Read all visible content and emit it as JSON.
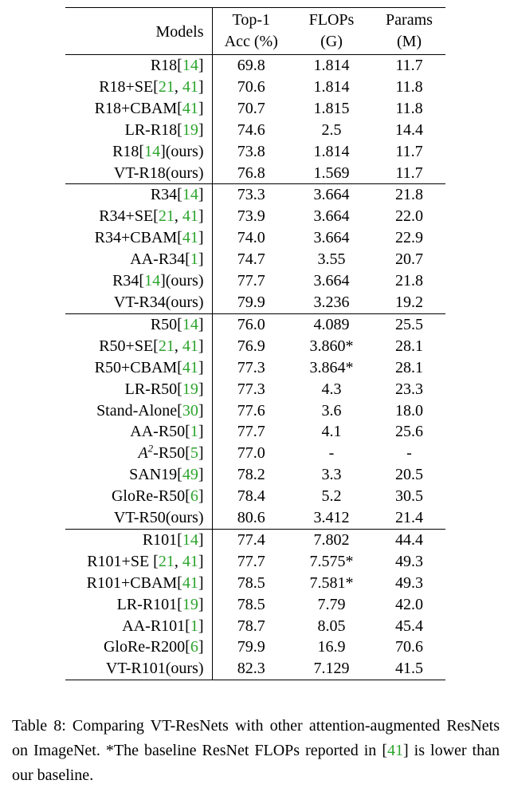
{
  "header": {
    "models": "Models",
    "top1_line1": "Top-1",
    "top1_line2": "Acc (%)",
    "flops_line1": "FLOPs",
    "flops_line2": "(G)",
    "params_line1": "Params",
    "params_line2": "(M)"
  },
  "groups": [
    {
      "rows": [
        {
          "base": "R18[",
          "cites": [
            "14"
          ],
          "tail": "]",
          "top1": "69.8",
          "flops": "1.814",
          "params": "11.7",
          "bold": []
        },
        {
          "base": "R18+SE[",
          "cites": [
            "21",
            "41"
          ],
          "tail": "]",
          "top1": "70.6",
          "flops": "1.814",
          "params": "11.8",
          "bold": []
        },
        {
          "base": "R18+CBAM[",
          "cites": [
            "41"
          ],
          "tail": "]",
          "top1": "70.7",
          "flops": "1.815",
          "params": "11.8",
          "bold": []
        },
        {
          "base": "LR-R18[",
          "cites": [
            "19"
          ],
          "tail": "]",
          "top1": "74.6",
          "flops": "2.5",
          "params": "14.4",
          "bold": []
        },
        {
          "base": "R18[",
          "cites": [
            "14"
          ],
          "tail": "](ours)",
          "top1": "73.8",
          "flops": "1.814",
          "params": "11.7",
          "bold": []
        },
        {
          "base": "VT-R18(ours)",
          "cites": [],
          "tail": "",
          "top1": "76.8",
          "flops": "1.569",
          "params": "11.7",
          "bold": [
            "top1",
            "flops",
            "params"
          ]
        }
      ]
    },
    {
      "rows": [
        {
          "base": "R34[",
          "cites": [
            "14"
          ],
          "tail": "]",
          "top1": "73.3",
          "flops": "3.664",
          "params": "21.8",
          "bold": []
        },
        {
          "base": "R34+SE[",
          "cites": [
            "21",
            "41"
          ],
          "tail": "]",
          "top1": "73.9",
          "flops": "3.664",
          "params": "22.0",
          "bold": []
        },
        {
          "base": "R34+CBAM[",
          "cites": [
            "41"
          ],
          "tail": "]",
          "top1": "74.0",
          "flops": "3.664",
          "params": "22.9",
          "bold": []
        },
        {
          "base": "AA-R34[",
          "cites": [
            "1"
          ],
          "tail": "]",
          "top1": "74.7",
          "flops": "3.55",
          "params": "20.7",
          "bold": []
        },
        {
          "base": "R34[",
          "cites": [
            "14"
          ],
          "tail": "](ours)",
          "top1": "77.7",
          "flops": "3.664",
          "params": "21.8",
          "bold": []
        },
        {
          "base": "VT-R34(ours)",
          "cites": [],
          "tail": "",
          "top1": "79.9",
          "flops": "3.236",
          "params": "19.2",
          "bold": [
            "top1",
            "flops",
            "params"
          ]
        }
      ]
    },
    {
      "rows": [
        {
          "base": "R50[",
          "cites": [
            "14"
          ],
          "tail": "]",
          "top1": "76.0",
          "flops": "4.089",
          "params": "25.5",
          "bold": []
        },
        {
          "base": "R50+SE[",
          "cites": [
            "21",
            "41"
          ],
          "tail": "]",
          "top1": "76.9",
          "flops": "3.860*",
          "params": "28.1",
          "bold": []
        },
        {
          "base": "R50+CBAM[",
          "cites": [
            "41"
          ],
          "tail": "]",
          "top1": "77.3",
          "flops": "3.864*",
          "params": "28.1",
          "bold": []
        },
        {
          "base": "LR-R50[",
          "cites": [
            "19"
          ],
          "tail": "]",
          "top1": "77.3",
          "flops": "4.3",
          "params": "23.3",
          "bold": []
        },
        {
          "base": "Stand-Alone[",
          "cites": [
            "30"
          ],
          "tail": "]",
          "top1": "77.6",
          "flops": "3.6",
          "params": "18.0",
          "bold": [
            "params"
          ]
        },
        {
          "base": "AA-R50[",
          "cites": [
            "1"
          ],
          "tail": "]",
          "top1": "77.7",
          "flops": "4.1",
          "params": "25.6",
          "bold": []
        },
        {
          "base": "-R50[",
          "prefix_math": "A2",
          "cites": [
            "5"
          ],
          "tail": "]",
          "top1": "77.0",
          "flops": "-",
          "params": "-",
          "bold": []
        },
        {
          "base": "SAN19[",
          "cites": [
            "49"
          ],
          "tail": "]",
          "top1": "78.2",
          "flops": "3.3",
          "params": "20.5",
          "bold": [
            "flops"
          ]
        },
        {
          "base": "GloRe-R50[",
          "cites": [
            "6"
          ],
          "tail": "]",
          "top1": "78.4",
          "flops": "5.2",
          "params": "30.5",
          "bold": []
        },
        {
          "base": "VT-R50(ours)",
          "cites": [],
          "tail": "",
          "top1": "80.6",
          "flops": "3.412",
          "params": "21.4",
          "bold": [
            "top1"
          ]
        }
      ]
    },
    {
      "rows": [
        {
          "base": "R101[",
          "cites": [
            "14"
          ],
          "tail": "]",
          "top1": "77.4",
          "flops": "7.802",
          "params": "44.4",
          "bold": []
        },
        {
          "base": "R101+SE [",
          "cites": [
            "21",
            "41"
          ],
          "tail": "]",
          "top1": "77.7",
          "flops": "7.575*",
          "params": "49.3",
          "bold": []
        },
        {
          "base": "R101+CBAM[",
          "cites": [
            "41"
          ],
          "tail": "]",
          "top1": "78.5",
          "flops": "7.581*",
          "params": "49.3",
          "bold": []
        },
        {
          "base": "LR-R101[",
          "cites": [
            "19"
          ],
          "tail": "]",
          "top1": "78.5",
          "flops": "7.79",
          "params": "42.0",
          "bold": []
        },
        {
          "base": "AA-R101[",
          "cites": [
            "1"
          ],
          "tail": "]",
          "top1": "78.7",
          "flops": "8.05",
          "params": "45.4",
          "bold": []
        },
        {
          "base": "GloRe-R200[",
          "cites": [
            "6"
          ],
          "tail": "]",
          "top1": "79.9",
          "flops": "16.9",
          "params": "70.6",
          "bold": []
        },
        {
          "base": "VT-R101(ours)",
          "cites": [],
          "tail": "",
          "top1": "82.3",
          "flops": "7.129",
          "params": "41.5",
          "bold": [
            "top1",
            "flops",
            "params"
          ]
        }
      ]
    }
  ],
  "caption": {
    "part1": "Table 8: Comparing VT-ResNets with other attention-augmented ResNets on ImageNet. *The baseline ResNet FLOPs reported in [",
    "cite": "41",
    "part2": "] is lower than our baseline."
  },
  "colors": {
    "citation": "#2ca42c",
    "text": "#000000",
    "background": "#ffffff"
  }
}
